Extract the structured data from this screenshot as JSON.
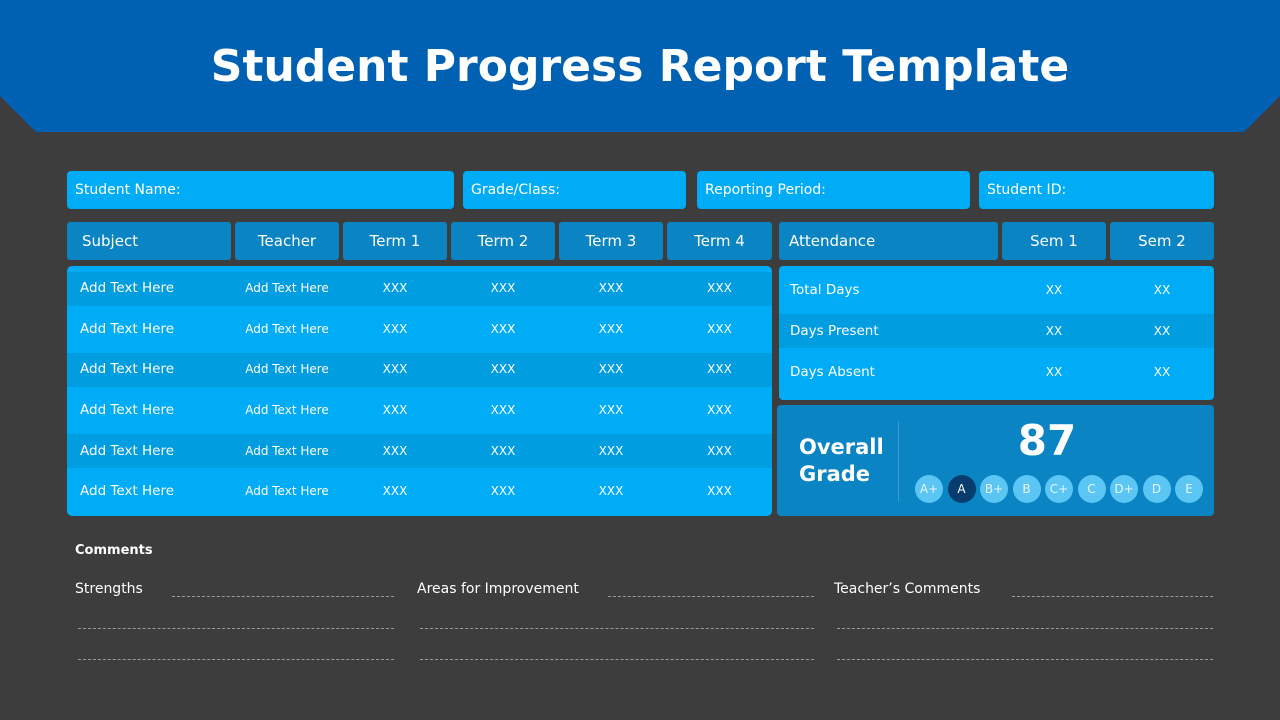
{
  "title": "Student Progress Report Template",
  "info_fields": [
    "Student Name:",
    "Grade/Class:",
    "Reporting Period:",
    "Student ID:"
  ],
  "grades_table": {
    "headers": [
      "Subject",
      "Teacher",
      "Term 1",
      "Term 2",
      "Term 3",
      "Term 4"
    ],
    "rows": [
      [
        "Add Text Here",
        "Add Text Here",
        "XXX",
        "XXX",
        "XXX",
        "XXX"
      ],
      [
        "Add Text Here",
        "Add Text Here",
        "XXX",
        "XXX",
        "XXX",
        "XXX"
      ],
      [
        "Add Text Here",
        "Add Text Here",
        "XXX",
        "XXX",
        "XXX",
        "XXX"
      ],
      [
        "Add Text Here",
        "Add Text Here",
        "XXX",
        "XXX",
        "XXX",
        "XXX"
      ],
      [
        "Add Text Here",
        "Add Text Here",
        "XXX",
        "XXX",
        "XXX",
        "XXX"
      ],
      [
        "Add Text Here",
        "Add Text Here",
        "XXX",
        "XXX",
        "XXX",
        "XXX"
      ]
    ]
  },
  "attendance": {
    "headers": [
      "Attendance",
      "Sem 1",
      "Sem 2"
    ],
    "rows": [
      [
        "Total Days",
        "XX",
        "XX"
      ],
      [
        "Days Present",
        "XX",
        "XX"
      ],
      [
        "Days Absent",
        "XX",
        "XX"
      ]
    ]
  },
  "overall": {
    "label": "Overall Grade",
    "score": "87",
    "grades": [
      "A+",
      "A",
      "B+",
      "B",
      "C+",
      "C",
      "D+",
      "D",
      "E"
    ],
    "selected": 1
  },
  "comments": {
    "title": "Comments",
    "labels": [
      "Strengths",
      "Areas for Improvement",
      "Teacher’s Comments"
    ]
  }
}
